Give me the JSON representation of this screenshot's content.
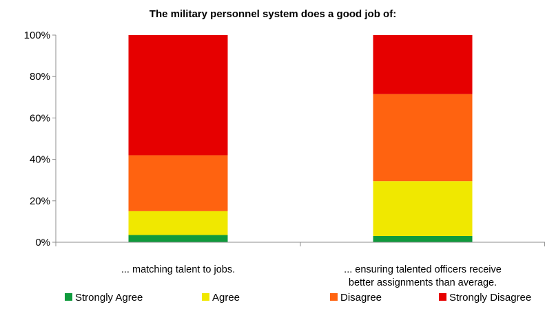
{
  "chart_data": {
    "type": "bar",
    "stacked": true,
    "percent": true,
    "title": "The military personnel system does a good job of:",
    "xlabel": "",
    "ylabel": "",
    "ylim": [
      0,
      100
    ],
    "y_ticks": [
      "0%",
      "20%",
      "40%",
      "60%",
      "80%",
      "100%"
    ],
    "grid": false,
    "legend_position": "bottom",
    "categories": [
      [
        "... matching talent to jobs."
      ],
      [
        "... ensuring talented officers receive",
        "better assignments than average."
      ]
    ],
    "series": [
      {
        "name": "Strongly Agree",
        "color": "#0f9a3c",
        "values": [
          3.5,
          3
        ]
      },
      {
        "name": "Agree",
        "color": "#f0e800",
        "values": [
          11.5,
          26.5
        ]
      },
      {
        "name": "Disagree",
        "color": "#ff6310",
        "values": [
          27,
          42
        ]
      },
      {
        "name": "Strongly Disagree",
        "color": "#e60000",
        "values": [
          58,
          28.5
        ]
      }
    ]
  }
}
